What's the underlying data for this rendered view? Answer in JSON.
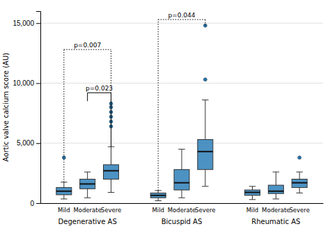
{
  "chart_data": {
    "type": "box",
    "ylabel": "Aortic valve calcium score (AU)",
    "ylim": [
      0,
      16000
    ],
    "yticks": [
      0,
      {
        "value": 5000,
        "label": "5,000"
      },
      {
        "value": 10000,
        "label": "10,000"
      },
      {
        "value": 15000,
        "label": "15,000"
      }
    ],
    "grid": true,
    "groups": [
      {
        "label": "Degenerative AS",
        "categories": [
          "Mild",
          "Moderate",
          "Severe"
        ],
        "boxes": [
          {
            "q1": 700,
            "median": 1000,
            "q3": 1300,
            "whislo": 350,
            "whishi": 1750,
            "fliers": [
              3800
            ]
          },
          {
            "q1": 1200,
            "median": 1600,
            "q3": 2000,
            "whislo": 450,
            "whishi": 2600,
            "fliers": []
          },
          {
            "q1": 2000,
            "median": 2700,
            "q3": 3200,
            "whislo": 900,
            "whishi": 4700,
            "fliers": [
              6400,
              6800,
              7200,
              7600,
              8000,
              8300
            ]
          }
        ]
      },
      {
        "label": "Bicuspid AS",
        "categories": [
          "Mild",
          "Moderate",
          "Severe"
        ],
        "boxes": [
          {
            "q1": 450,
            "median": 650,
            "q3": 850,
            "whislo": 200,
            "whishi": 1050,
            "fliers": []
          },
          {
            "q1": 1100,
            "median": 1700,
            "q3": 2800,
            "whislo": 450,
            "whishi": 4500,
            "fliers": []
          },
          {
            "q1": 2800,
            "median": 4300,
            "q3": 5300,
            "whislo": 1400,
            "whishi": 8600,
            "fliers": [
              10300,
              14800
            ]
          }
        ]
      },
      {
        "label": "Rheumatic AS",
        "categories": [
          "Mild",
          "Moderate",
          "Severe"
        ],
        "boxes": [
          {
            "q1": 650,
            "median": 900,
            "q3": 1100,
            "whislo": 300,
            "whishi": 1400,
            "fliers": []
          },
          {
            "q1": 800,
            "median": 1000,
            "q3": 1500,
            "whislo": 350,
            "whishi": 2600,
            "fliers": []
          },
          {
            "q1": 1300,
            "median": 1700,
            "q3": 2000,
            "whislo": 850,
            "whishi": 2600,
            "fliers": [
              3800
            ]
          }
        ]
      }
    ],
    "significance_brackets": [
      {
        "line_style": "solid",
        "from": {
          "group": 0,
          "box": 1
        },
        "to": {
          "group": 0,
          "box": 2
        },
        "y_top": 9200,
        "y_left_bottom": 8500,
        "y_right_bottom": 4700,
        "label": "p=0.023"
      },
      {
        "line_style": "dotted",
        "from": {
          "group": 0,
          "box": 0
        },
        "to": {
          "group": 0,
          "box": 2
        },
        "y_top": 12800,
        "y_left_bottom": 1750,
        "y_right_bottom": 4700,
        "label": "p=0.007"
      },
      {
        "line_style": "dotted",
        "from": {
          "group": 1,
          "box": 0
        },
        "to": {
          "group": 1,
          "box": 2
        },
        "y_top": 15300,
        "y_left_bottom": 1050,
        "y_right_bottom": 14800,
        "label": "p=0.044"
      }
    ]
  }
}
